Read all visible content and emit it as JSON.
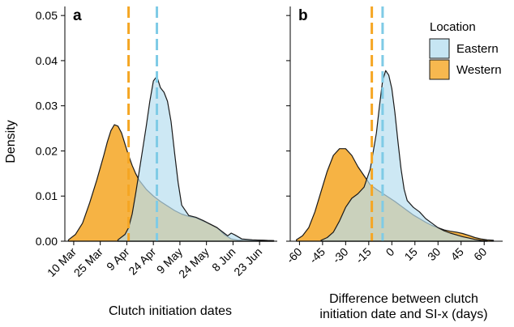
{
  "chart_data": [
    {
      "type": "area",
      "panel_label": "a",
      "xlabel": "Clutch initiation dates",
      "ylabel": "Density",
      "x_units": "day of year",
      "xlim": [
        64,
        184
      ],
      "ylim": [
        0,
        0.052
      ],
      "x_ticks": [
        {
          "value": 69,
          "label": "10 Mar"
        },
        {
          "value": 84,
          "label": "25 Mar"
        },
        {
          "value": 99,
          "label": "9 Apr"
        },
        {
          "value": 114,
          "label": "24 Apr"
        },
        {
          "value": 129,
          "label": "9 May"
        },
        {
          "value": 144,
          "label": "24 May"
        },
        {
          "value": 159,
          "label": "8 Jun"
        },
        {
          "value": 174,
          "label": "23 Jun"
        }
      ],
      "y_ticks": [
        {
          "value": 0.0,
          "label": "0.00"
        },
        {
          "value": 0.01,
          "label": "0.01"
        },
        {
          "value": 0.02,
          "label": "0.02"
        },
        {
          "value": 0.03,
          "label": "0.03"
        },
        {
          "value": 0.04,
          "label": "0.04"
        },
        {
          "value": 0.05,
          "label": "0.05"
        }
      ],
      "series": [
        {
          "name": "Western",
          "color": "#f5a623",
          "x": [
            66,
            70,
            74,
            78,
            82,
            86,
            88,
            90,
            92,
            94,
            96,
            98,
            100,
            102,
            104,
            106,
            110,
            114,
            118,
            122,
            126,
            130,
            134,
            138,
            142,
            146,
            150,
            154,
            158,
            162,
            166,
            170,
            176,
            182
          ],
          "y": [
            0.0003,
            0.0015,
            0.004,
            0.0085,
            0.0135,
            0.019,
            0.022,
            0.0245,
            0.0258,
            0.0255,
            0.024,
            0.0215,
            0.019,
            0.0168,
            0.015,
            0.0135,
            0.0115,
            0.01,
            0.0088,
            0.0078,
            0.0068,
            0.006,
            0.0055,
            0.0052,
            0.0045,
            0.0038,
            0.003,
            0.0015,
            0.0005,
            0.0002,
            0.0003,
            0.0002,
            0.0002,
            0.0001
          ]
        },
        {
          "name": "Eastern",
          "color": "#b8def0",
          "x": [
            94,
            98,
            100,
            102,
            104,
            106,
            108,
            110,
            112,
            114,
            116,
            118,
            120,
            122,
            124,
            126,
            128,
            130,
            134,
            138,
            142,
            146,
            150,
            154,
            156,
            158,
            160,
            164,
            170,
            176,
            182
          ],
          "y": [
            0.0003,
            0.0015,
            0.003,
            0.006,
            0.0105,
            0.0155,
            0.0205,
            0.0255,
            0.031,
            0.0355,
            0.0365,
            0.034,
            0.033,
            0.031,
            0.0265,
            0.0195,
            0.013,
            0.008,
            0.0057,
            0.0053,
            0.0046,
            0.0038,
            0.003,
            0.0018,
            0.0012,
            0.0018,
            0.0014,
            0.0005,
            0.0003,
            0.0002,
            0.0001
          ]
        }
      ],
      "reference_lines": [
        {
          "series": "Western",
          "x": 100,
          "color": "#f5a623"
        },
        {
          "series": "Eastern",
          "x": 116,
          "color": "#7fcbe6"
        }
      ]
    },
    {
      "type": "area",
      "panel_label": "b",
      "xlabel": "Difference between clutch\ninitiation date and SI-x (days)",
      "ylabel": "",
      "xlim": [
        -66,
        72
      ],
      "ylim": [
        0,
        0.052
      ],
      "x_ticks": [
        {
          "value": -60,
          "label": "-60"
        },
        {
          "value": -45,
          "label": "-45"
        },
        {
          "value": -30,
          "label": "-30"
        },
        {
          "value": -15,
          "label": "-15"
        },
        {
          "value": 0,
          "label": "0"
        },
        {
          "value": 15,
          "label": "15"
        },
        {
          "value": 30,
          "label": "30"
        },
        {
          "value": 45,
          "label": "45"
        },
        {
          "value": 60,
          "label": "60"
        }
      ],
      "series": [
        {
          "name": "Western",
          "color": "#f5a623",
          "x": [
            -62,
            -58,
            -54,
            -50,
            -46,
            -42,
            -38,
            -34,
            -30,
            -26,
            -22,
            -18,
            -14,
            -10,
            -6,
            -2,
            2,
            6,
            10,
            14,
            18,
            22,
            26,
            30,
            34,
            38,
            42,
            46,
            50,
            54,
            58,
            62,
            66
          ],
          "y": [
            0.0003,
            0.0012,
            0.003,
            0.0065,
            0.011,
            0.0155,
            0.019,
            0.0205,
            0.0205,
            0.019,
            0.0165,
            0.0145,
            0.0125,
            0.0115,
            0.0106,
            0.0097,
            0.0088,
            0.0078,
            0.0068,
            0.0058,
            0.005,
            0.0042,
            0.0035,
            0.003,
            0.0025,
            0.0022,
            0.002,
            0.0017,
            0.0013,
            0.0008,
            0.0005,
            0.0003,
            0.0002
          ]
        },
        {
          "name": "Eastern",
          "color": "#b8def0",
          "x": [
            -46,
            -42,
            -38,
            -34,
            -30,
            -26,
            -22,
            -18,
            -14,
            -10,
            -8,
            -6,
            -4,
            -2,
            0,
            2,
            4,
            6,
            8,
            10,
            14,
            18,
            22,
            26,
            30,
            34,
            38,
            42,
            46,
            50,
            54,
            58,
            62
          ],
          "y": [
            0.0002,
            0.0008,
            0.002,
            0.0045,
            0.0075,
            0.0095,
            0.0105,
            0.012,
            0.016,
            0.024,
            0.03,
            0.0355,
            0.0378,
            0.0368,
            0.0338,
            0.0285,
            0.022,
            0.016,
            0.0115,
            0.009,
            0.0075,
            0.0065,
            0.005,
            0.004,
            0.003,
            0.0023,
            0.0018,
            0.0014,
            0.001,
            0.0007,
            0.0004,
            0.0002,
            0.0001
          ]
        }
      ],
      "reference_lines": [
        {
          "series": "Western",
          "x": -13,
          "color": "#f5a623"
        },
        {
          "series": "Eastern",
          "x": -6,
          "color": "#7fcbe6"
        }
      ]
    }
  ],
  "legend": {
    "title": "Location",
    "placement": "top-right",
    "items": [
      {
        "name": "Eastern",
        "color": "#b8def0"
      },
      {
        "name": "Western",
        "color": "#f5a623"
      }
    ]
  },
  "colors": {
    "western_fill": "#f5a623",
    "eastern_fill": "#b8def0",
    "western_line": "#f5a623",
    "eastern_line": "#7fcbe6",
    "outline": "#1a1a1a"
  }
}
